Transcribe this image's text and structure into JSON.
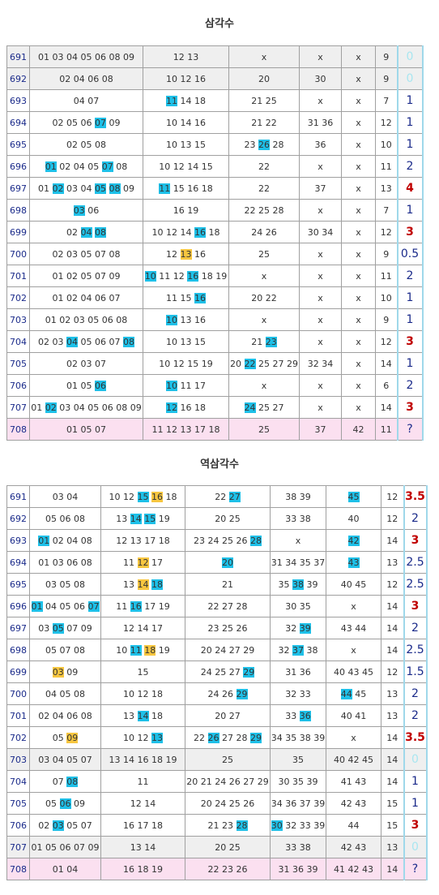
{
  "tables": [
    {
      "title": "삼각수",
      "rows": [
        {
          "id": 691,
          "cells": [
            "01 03 04 05 06 08 09",
            "12 13",
            "x",
            "x",
            "x"
          ],
          "count": 9,
          "result": "0",
          "tone": "faint",
          "bg": "gray"
        },
        {
          "id": 692,
          "cells": [
            "02 04 06 08",
            "10 12 16",
            "20",
            "30",
            "x"
          ],
          "count": 9,
          "result": "0",
          "tone": "faint",
          "bg": "gray"
        },
        {
          "id": 693,
          "cells": [
            "04 07",
            [
              {
                "t": "11",
                "hl": "blue"
              },
              "14",
              "18"
            ],
            "21 25",
            "x",
            "x"
          ],
          "count": 7,
          "result": "1",
          "tone": "normal"
        },
        {
          "id": 694,
          "cells": [
            [
              "02",
              "05",
              "06",
              {
                "t": "07",
                "hl": "blue"
              },
              "09"
            ],
            "10 14 16",
            "21 22",
            "31 36",
            "x"
          ],
          "count": 12,
          "result": "1",
          "tone": "normal"
        },
        {
          "id": 695,
          "cells": [
            "02 05 08",
            "10 13 15",
            [
              "23",
              {
                "t": "26",
                "hl": "blue"
              },
              "28"
            ],
            "36",
            "x"
          ],
          "count": 10,
          "result": "1",
          "tone": "normal"
        },
        {
          "id": 696,
          "cells": [
            [
              {
                "t": "01",
                "hl": "blue"
              },
              "02",
              "04",
              "05",
              {
                "t": "07",
                "hl": "blue"
              },
              "08"
            ],
            "10 12 14 15",
            "22",
            "x",
            "x"
          ],
          "count": 11,
          "result": "2",
          "tone": "normal"
        },
        {
          "id": 697,
          "cells": [
            [
              "01",
              {
                "t": "02",
                "hl": "blue"
              },
              "03",
              "04",
              {
                "t": "05",
                "hl": "blue"
              },
              {
                "t": "08",
                "hl": "blue"
              },
              "09"
            ],
            [
              {
                "t": "11",
                "hl": "blue"
              },
              "15",
              "16",
              "18"
            ],
            "22",
            "37",
            "x"
          ],
          "count": 13,
          "result": "4",
          "tone": "red"
        },
        {
          "id": 698,
          "cells": [
            [
              {
                "t": "03",
                "hl": "blue"
              },
              "06"
            ],
            "16 19",
            "22 25 28",
            "x",
            "x"
          ],
          "count": 7,
          "result": "1",
          "tone": "normal"
        },
        {
          "id": 699,
          "cells": [
            [
              "02",
              {
                "t": "04",
                "hl": "blue"
              },
              {
                "t": "08",
                "hl": "blue"
              }
            ],
            [
              "10",
              "12",
              "14",
              {
                "t": "16",
                "hl": "blue"
              },
              "18"
            ],
            "24 26",
            "30 34",
            "x"
          ],
          "count": 12,
          "result": "3",
          "tone": "red"
        },
        {
          "id": 700,
          "cells": [
            "02 03 05 07 08",
            [
              "12",
              {
                "t": "13",
                "hl": "yellow"
              },
              "16"
            ],
            "25",
            "x",
            "x"
          ],
          "count": 9,
          "result": "0.5",
          "tone": "normal"
        },
        {
          "id": 701,
          "cells": [
            "01 02 05 07 09",
            [
              {
                "t": "10",
                "hl": "blue"
              },
              "11",
              "12",
              {
                "t": "16",
                "hl": "blue"
              },
              "18",
              "19"
            ],
            "x",
            "x",
            "x"
          ],
          "count": 11,
          "result": "2",
          "tone": "normal"
        },
        {
          "id": 702,
          "cells": [
            "01 02 04 06 07",
            [
              "11",
              "15",
              {
                "t": "16",
                "hl": "blue"
              }
            ],
            "20 22",
            "x",
            "x"
          ],
          "count": 10,
          "result": "1",
          "tone": "normal"
        },
        {
          "id": 703,
          "cells": [
            "01 02 03 05 06 08",
            [
              {
                "t": "10",
                "hl": "blue"
              },
              "13",
              "16"
            ],
            "x",
            "x",
            "x"
          ],
          "count": 9,
          "result": "1",
          "tone": "normal"
        },
        {
          "id": 704,
          "cells": [
            [
              "02",
              "03",
              {
                "t": "04",
                "hl": "blue"
              },
              "05",
              "06",
              "07",
              {
                "t": "08",
                "hl": "blue"
              }
            ],
            "10 13 15",
            [
              "21",
              {
                "t": "23",
                "hl": "blue"
              }
            ],
            "x",
            "x"
          ],
          "count": 12,
          "result": "3",
          "tone": "red"
        },
        {
          "id": 705,
          "cells": [
            "02 03 07",
            "10 12 15 19",
            [
              "20",
              {
                "t": "22",
                "hl": "blue"
              },
              "25",
              "27",
              "29"
            ],
            "32 34",
            "x"
          ],
          "count": 14,
          "result": "1",
          "tone": "normal"
        },
        {
          "id": 706,
          "cells": [
            [
              "01",
              "05",
              {
                "t": "06",
                "hl": "blue"
              }
            ],
            [
              {
                "t": "10",
                "hl": "blue"
              },
              "11",
              "17"
            ],
            "x",
            "x",
            "x"
          ],
          "count": 6,
          "result": "2",
          "tone": "normal"
        },
        {
          "id": 707,
          "cells": [
            [
              "01",
              {
                "t": "02",
                "hl": "blue"
              },
              "03",
              "04",
              "05",
              "06",
              "08",
              "09"
            ],
            [
              {
                "t": "12",
                "hl": "blue"
              },
              "16",
              "18"
            ],
            [
              {
                "t": "24",
                "hl": "blue"
              },
              "25",
              "27"
            ],
            "x",
            "x"
          ],
          "count": 14,
          "result": "3",
          "tone": "red"
        },
        {
          "id": 708,
          "cells": [
            "01 05 07",
            "11 12 13 17 18",
            "25",
            "37",
            "42"
          ],
          "count": 11,
          "result": "?",
          "tone": "normal",
          "bg": "pink"
        }
      ]
    },
    {
      "title": "역삼각수",
      "rows": [
        {
          "id": 691,
          "cells": [
            "03 04",
            [
              "10",
              "12",
              {
                "t": "15",
                "hl": "blue"
              },
              {
                "t": "16",
                "hl": "yellow"
              },
              "18"
            ],
            [
              "22",
              {
                "t": "27",
                "hl": "blue"
              }
            ],
            "38 39",
            [
              {
                "t": "45",
                "hl": "blue"
              }
            ]
          ],
          "count": 12,
          "result": "3.5",
          "tone": "red"
        },
        {
          "id": 692,
          "cells": [
            "05 06 08",
            [
              "13",
              {
                "t": "14",
                "hl": "blue"
              },
              {
                "t": "15",
                "hl": "blue"
              },
              "19"
            ],
            "20 25",
            "33 38",
            "40"
          ],
          "count": 12,
          "result": "2",
          "tone": "normal"
        },
        {
          "id": 693,
          "cells": [
            [
              {
                "t": "01",
                "hl": "blue"
              },
              "02",
              "04",
              "08"
            ],
            "12 13 17 18",
            [
              "23",
              "24",
              "25",
              "26",
              {
                "t": "28",
                "hl": "blue"
              }
            ],
            "x",
            [
              {
                "t": "42",
                "hl": "blue"
              }
            ]
          ],
          "count": 14,
          "result": "3",
          "tone": "red"
        },
        {
          "id": 694,
          "cells": [
            "01 03 06 08",
            [
              "11",
              {
                "t": "12",
                "hl": "yellow"
              },
              "17"
            ],
            [
              {
                "t": "20",
                "hl": "blue"
              }
            ],
            "31 34 35 37",
            [
              {
                "t": "43",
                "hl": "blue"
              }
            ]
          ],
          "count": 13,
          "result": "2.5",
          "tone": "normal"
        },
        {
          "id": 695,
          "cells": [
            "03 05 08",
            [
              "13",
              {
                "t": "14",
                "hl": "yellow"
              },
              {
                "t": "18",
                "hl": "blue"
              }
            ],
            "21",
            [
              "35",
              {
                "t": "38",
                "hl": "blue"
              },
              "39"
            ],
            "40 45"
          ],
          "count": 12,
          "result": "2.5",
          "tone": "normal"
        },
        {
          "id": 696,
          "cells": [
            [
              {
                "t": "01",
                "hl": "blue"
              },
              "04",
              "05",
              "06",
              {
                "t": "07",
                "hl": "blue"
              }
            ],
            [
              "11",
              {
                "t": "16",
                "hl": "blue"
              },
              "17",
              "19"
            ],
            "22 27 28",
            "30 35",
            "x"
          ],
          "count": 14,
          "result": "3",
          "tone": "red"
        },
        {
          "id": 697,
          "cells": [
            [
              "03",
              {
                "t": "05",
                "hl": "blue"
              },
              "07",
              "09"
            ],
            "12 14 17",
            "23 25 26",
            [
              "32",
              {
                "t": "39",
                "hl": "blue"
              }
            ],
            "43 44"
          ],
          "count": 14,
          "result": "2",
          "tone": "normal"
        },
        {
          "id": 698,
          "cells": [
            "05 07 08",
            [
              "10",
              {
                "t": "11",
                "hl": "blue"
              },
              {
                "t": "18",
                "hl": "yellow"
              },
              "19"
            ],
            "20 24 27 29",
            [
              "32",
              {
                "t": "37",
                "hl": "blue"
              },
              "38"
            ],
            "x"
          ],
          "count": 14,
          "result": "2.5",
          "tone": "normal"
        },
        {
          "id": 699,
          "cells": [
            [
              {
                "t": "03",
                "hl": "yellow"
              },
              "09"
            ],
            "15",
            [
              "24",
              "25",
              "27",
              {
                "t": "29",
                "hl": "blue"
              }
            ],
            "31 36",
            "40 43 45"
          ],
          "count": 12,
          "result": "1.5",
          "tone": "normal"
        },
        {
          "id": 700,
          "cells": [
            "04 05 08",
            "10 12 18",
            [
              "24",
              "26",
              {
                "t": "29",
                "hl": "blue"
              }
            ],
            "32 33",
            [
              {
                "t": "44",
                "hl": "blue"
              },
              "45"
            ]
          ],
          "count": 13,
          "result": "2",
          "tone": "normal"
        },
        {
          "id": 701,
          "cells": [
            "02 04 06 08",
            [
              "13",
              {
                "t": "14",
                "hl": "blue"
              },
              "18"
            ],
            "20 27",
            [
              "33",
              {
                "t": "36",
                "hl": "blue"
              }
            ],
            "40 41"
          ],
          "count": 13,
          "result": "2",
          "tone": "normal"
        },
        {
          "id": 702,
          "cells": [
            [
              "05",
              {
                "t": "09",
                "hl": "yellow"
              }
            ],
            [
              "10",
              "12",
              {
                "t": "13",
                "hl": "blue"
              }
            ],
            [
              "22",
              {
                "t": "26",
                "hl": "blue"
              },
              "27",
              "28",
              {
                "t": "29",
                "hl": "blue"
              }
            ],
            "34 35 38 39",
            "x"
          ],
          "count": 14,
          "result": "3.5",
          "tone": "red"
        },
        {
          "id": 703,
          "cells": [
            "03 04 05 07",
            "13 14 16 18 19",
            "25",
            "35",
            "40 42 45"
          ],
          "count": 14,
          "result": "0",
          "tone": "faint",
          "bg": "gray"
        },
        {
          "id": 704,
          "cells": [
            [
              "07",
              {
                "t": "08",
                "hl": "blue"
              }
            ],
            "11",
            "20 21 24 26 27 29",
            "30 35 39",
            "41 43"
          ],
          "count": 14,
          "result": "1",
          "tone": "normal"
        },
        {
          "id": 705,
          "cells": [
            [
              "05",
              {
                "t": "06",
                "hl": "blue"
              },
              "09"
            ],
            "12 14",
            "20 24 25 26",
            "34 36 37 39",
            "42 43"
          ],
          "count": 15,
          "result": "1",
          "tone": "normal"
        },
        {
          "id": 706,
          "cells": [
            [
              "02",
              {
                "t": "03",
                "hl": "blue"
              },
              "05",
              "07"
            ],
            "16 17 18",
            [
              "21",
              "23",
              {
                "t": "28",
                "hl": "blue"
              }
            ],
            [
              {
                "t": "30",
                "hl": "blue"
              },
              "32",
              "33",
              "39"
            ],
            "44"
          ],
          "count": 15,
          "result": "3",
          "tone": "red"
        },
        {
          "id": 707,
          "cells": [
            "01 05 06 07 09",
            "13 14",
            "20 25",
            "33 38",
            "42 43"
          ],
          "count": 13,
          "result": "0",
          "tone": "faint",
          "bg": "gray"
        },
        {
          "id": 708,
          "cells": [
            "01 04",
            "16 18 19",
            "22 23 26",
            "31 36 39",
            "41 42 43"
          ],
          "count": 14,
          "result": "?",
          "tone": "normal",
          "bg": "pink"
        }
      ]
    }
  ]
}
